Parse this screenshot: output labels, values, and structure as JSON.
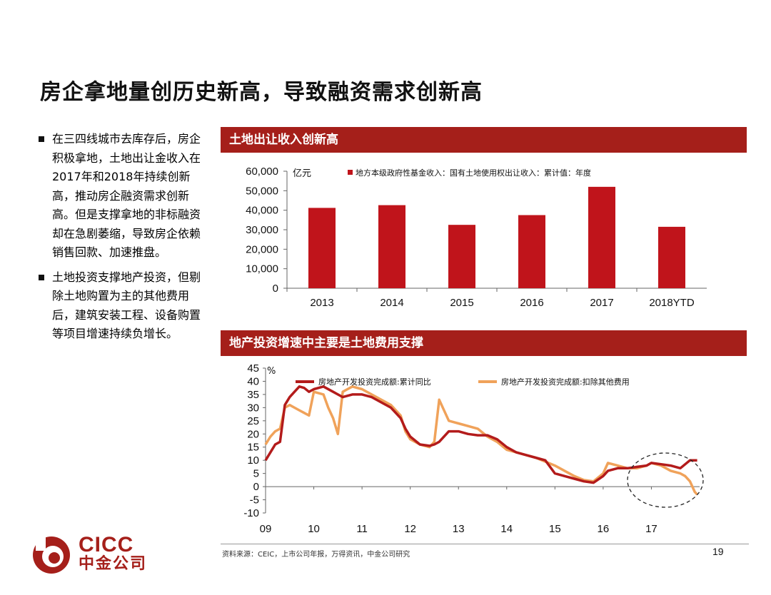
{
  "title": "房企拿地量创历史新高，导致融资需求创新高",
  "bullets": [
    "在三四线城市去库存后，房企积极拿地，土地出让金收入在2017年和2018年持续创新高，推动房企融资需求创新高。但是支撑拿地的非标融资却在急剧萎缩，导致房企依赖销售回款、加速推盘。",
    "土地投资支撑地产投资，但剔除土地购置为主的其他费用后，建筑安装工程、设备购置等项目增速持续负增长。"
  ],
  "panel1": {
    "header": "土地出让收入创新高",
    "unit": "亿元"
  },
  "panel2": {
    "header": "地产投资增速中主要是土地费用支撑",
    "unit": "%"
  },
  "footer": {
    "source": "资料来源：CEIC，上市公司年报，万得资讯，中金公司研究",
    "page": "19"
  },
  "logo": {
    "en": "CICC",
    "zh": "中金公司"
  },
  "colors": {
    "accent": "#a51f1a",
    "bar": "#c0141b",
    "series1": "#b31b1b",
    "series2": "#f0a25a",
    "highlight_circle": "#222222"
  },
  "chart_data": [
    {
      "type": "bar",
      "categories": [
        "2013",
        "2014",
        "2015",
        "2016",
        "2017",
        "2018YTD"
      ],
      "series": [
        {
          "name": "地方本级政府性基金收入：国有土地使用权出让收入：累计值：年度",
          "values": [
            41200,
            42600,
            32500,
            37500,
            52000,
            31500
          ]
        }
      ],
      "ylim": [
        0,
        60000
      ],
      "yticks": [
        "0",
        "10,000",
        "20,000",
        "30,000",
        "40,000",
        "50,000",
        "60,000"
      ],
      "ylabel": "亿元",
      "legend": "top"
    },
    {
      "type": "line",
      "x_range": [
        2009.0,
        2018.0
      ],
      "xticks": [
        "09",
        "10",
        "11",
        "12",
        "13",
        "14",
        "15",
        "16",
        "17"
      ],
      "ylim": [
        -10,
        45
      ],
      "yticks": [
        "-10",
        "-5",
        "0",
        "5",
        "10",
        "15",
        "20",
        "25",
        "30",
        "35",
        "40",
        "45"
      ],
      "ylabel": "%",
      "legend": "top",
      "annotation": "dashed-ellipse-around-2017-2018",
      "series": [
        {
          "name": "房地产开发投资完成额:累计同比",
          "x": [
            2009.0,
            2009.1,
            2009.2,
            2009.3,
            2009.4,
            2009.5,
            2009.6,
            2009.7,
            2009.8,
            2009.9,
            2010.0,
            2010.2,
            2010.4,
            2010.5,
            2010.6,
            2010.8,
            2011.0,
            2011.2,
            2011.4,
            2011.6,
            2011.8,
            2011.9,
            2012.0,
            2012.2,
            2012.4,
            2012.5,
            2012.6,
            2012.8,
            2013.0,
            2013.2,
            2013.4,
            2013.6,
            2013.8,
            2014.0,
            2014.2,
            2014.4,
            2014.6,
            2014.8,
            2015.0,
            2015.2,
            2015.4,
            2015.6,
            2015.8,
            2016.0,
            2016.1,
            2016.3,
            2016.5,
            2016.7,
            2016.9,
            2017.0,
            2017.2,
            2017.4,
            2017.6,
            2017.8,
            2017.95
          ],
          "y": [
            10,
            13,
            16,
            17,
            31,
            34,
            36,
            38,
            37.5,
            36,
            37,
            38,
            36,
            35,
            34,
            35,
            35,
            34,
            32,
            30,
            26,
            22,
            19,
            16,
            15.5,
            16,
            17,
            21,
            21,
            20,
            19.5,
            19.5,
            18,
            15,
            13,
            12,
            11,
            10,
            5,
            4,
            3,
            2,
            1.5,
            4,
            6,
            7,
            7,
            7.5,
            8,
            9,
            8.5,
            8,
            7,
            10,
            10
          ]
        },
        {
          "name": "房地产开发投资完成额:扣除其他费用",
          "x": [
            2009.0,
            2009.1,
            2009.2,
            2009.3,
            2009.4,
            2009.5,
            2009.6,
            2009.7,
            2009.8,
            2009.9,
            2010.0,
            2010.2,
            2010.3,
            2010.4,
            2010.5,
            2010.6,
            2010.7,
            2010.8,
            2011.0,
            2011.2,
            2011.4,
            2011.6,
            2011.8,
            2011.9,
            2012.0,
            2012.2,
            2012.4,
            2012.5,
            2012.55,
            2012.6,
            2012.8,
            2013.0,
            2013.2,
            2013.4,
            2013.6,
            2013.8,
            2014.0,
            2014.2,
            2014.4,
            2014.6,
            2014.8,
            2015.0,
            2015.2,
            2015.4,
            2015.6,
            2015.8,
            2016.0,
            2016.1,
            2016.3,
            2016.5,
            2016.7,
            2016.9,
            2017.0,
            2017.2,
            2017.4,
            2017.6,
            2017.7,
            2017.8,
            2017.9,
            2017.95
          ],
          "y": [
            16,
            19,
            21,
            22,
            30,
            31,
            30,
            29,
            28,
            27,
            36,
            35,
            30,
            26,
            20,
            36,
            37,
            38,
            37,
            35,
            33,
            31,
            27,
            21,
            18,
            16,
            15,
            17,
            25,
            33,
            25,
            24,
            23,
            22,
            19,
            17,
            14,
            13,
            12,
            11,
            9.5,
            8,
            6,
            4,
            2.5,
            2,
            5,
            9,
            8,
            7,
            7,
            8,
            9,
            8,
            6,
            5,
            4,
            2,
            -2,
            -3
          ]
        }
      ]
    }
  ]
}
